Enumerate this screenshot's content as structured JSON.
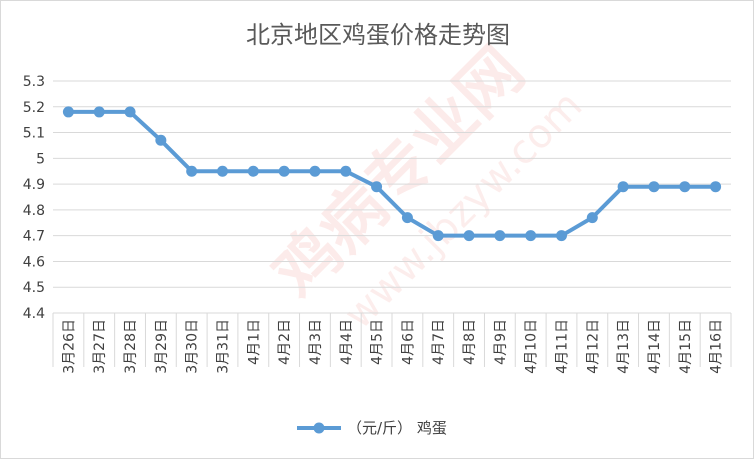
{
  "chart_data": {
    "type": "line",
    "title": "北京地区鸡蛋价格走势图",
    "categories": [
      "3月26日",
      "3月27日",
      "3月28日",
      "3月29日",
      "3月30日",
      "3月31日",
      "4月1日",
      "4月2日",
      "4月3日",
      "4月4日",
      "4月5日",
      "4月6日",
      "4月7日",
      "4月8日",
      "4月9日",
      "4月10日",
      "4月11日",
      "4月12日",
      "4月13日",
      "4月14日",
      "4月15日",
      "4月16日"
    ],
    "series": [
      {
        "name": "（元/斤） 鸡蛋",
        "values": [
          5.18,
          5.18,
          5.18,
          5.07,
          4.95,
          4.95,
          4.95,
          4.95,
          4.95,
          4.95,
          4.89,
          4.77,
          4.7,
          4.7,
          4.7,
          4.7,
          4.7,
          4.77,
          4.89,
          4.89,
          4.89,
          4.89
        ]
      }
    ],
    "yticks": [
      "4.4",
      "4.5",
      "4.6",
      "4.7",
      "4.8",
      "4.9",
      "5",
      "5.1",
      "5.2",
      "5.3"
    ],
    "ylim": [
      4.4,
      5.3
    ],
    "grid": true,
    "legend": "bottom",
    "colors": {
      "line": "#5b9bd5",
      "grid": "#d9d9d9",
      "watermark": "#e8483a"
    },
    "watermark_text": "鸡病专业网",
    "watermark_url": "www.jbzyw.com"
  }
}
